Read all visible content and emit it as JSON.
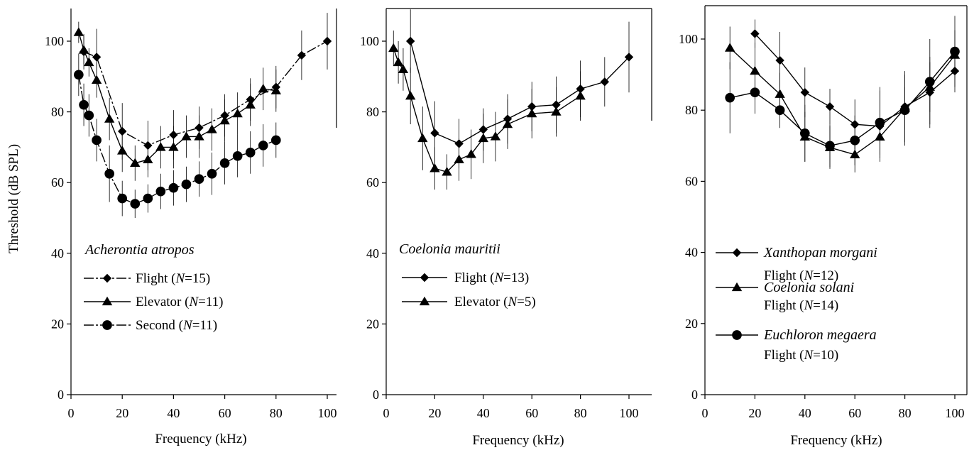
{
  "chart_data": [
    {
      "type": "line",
      "panel": "A",
      "xlabel": "Frequency (kHz)",
      "ylabel": "Threshold (dB SPL)",
      "xlim": [
        0,
        105
      ],
      "ylim": [
        0,
        110
      ],
      "xticks": [
        "0",
        "20",
        "40",
        "60",
        "80",
        "100"
      ],
      "yticks": [
        "0",
        "20",
        "40",
        "60",
        "80",
        "100"
      ],
      "species_label": "Acherontia atropos",
      "series": [
        {
          "name": "Flight (N=15)",
          "label_main": "Flight (",
          "label_n": "N",
          "label_rest": "=15)",
          "marker": "diamond",
          "dash": "dashdot",
          "x": [
            5,
            10,
            20,
            30,
            40,
            50,
            60,
            70,
            80,
            90,
            100
          ],
          "y": [
            97,
            95.5,
            74.5,
            70.5,
            73.5,
            75.5,
            79,
            83.5,
            87,
            96,
            100
          ],
          "err": [
            5,
            8,
            8,
            7,
            7,
            6,
            6,
            6,
            6,
            7,
            8
          ]
        },
        {
          "name": "Elevator (N=11)",
          "label_main": "Elevator (",
          "label_n": "N",
          "label_rest": "=11)",
          "marker": "triangle",
          "dash": "solid",
          "x": [
            3,
            5,
            7,
            10,
            15,
            20,
            25,
            30,
            35,
            40,
            45,
            50,
            55,
            60,
            65,
            70,
            75,
            80
          ],
          "y": [
            102.5,
            97.5,
            94,
            89,
            78,
            69,
            65.5,
            66.5,
            70,
            70,
            73,
            73,
            75,
            77.5,
            79.5,
            82,
            86.5,
            86
          ],
          "err": [
            3,
            4,
            4,
            5,
            6,
            6,
            5,
            5,
            6,
            6,
            6,
            6,
            6,
            6,
            6,
            6,
            6,
            6
          ]
        },
        {
          "name": "Second (N=11)",
          "label_main": "Second (",
          "label_n": "N",
          "label_rest": "=11)",
          "marker": "circle",
          "dash": "dashdot",
          "x": [
            3,
            5,
            7,
            10,
            15,
            20,
            25,
            30,
            35,
            40,
            45,
            50,
            55,
            60,
            65,
            70,
            75,
            80
          ],
          "y": [
            90.5,
            82,
            79,
            72,
            62.5,
            55.5,
            54,
            55.5,
            57.5,
            58.5,
            59.5,
            61,
            62.5,
            65.5,
            67.5,
            68.5,
            70.5,
            72
          ],
          "err": [
            6,
            6,
            6,
            6,
            8,
            5,
            4,
            4,
            5,
            5,
            5,
            5,
            6,
            6,
            6,
            6,
            6,
            5
          ]
        }
      ]
    },
    {
      "type": "line",
      "panel": "B",
      "xlabel": "Frequency (kHz)",
      "ylabel": "",
      "xlim": [
        0,
        105
      ],
      "ylim": [
        0,
        110
      ],
      "xticks": [
        "0",
        "20",
        "40",
        "60",
        "80",
        "100"
      ],
      "yticks": [
        "0",
        "20",
        "40",
        "60",
        "80",
        "100"
      ],
      "species_label": "Coelonia mauritii",
      "series": [
        {
          "name": "Flight (N=13)",
          "label_main": "Flight (",
          "label_n": "N",
          "label_rest": "=13)",
          "marker": "diamond",
          "dash": "solid",
          "x": [
            10,
            20,
            30,
            40,
            50,
            60,
            70,
            80,
            90,
            100
          ],
          "y": [
            100,
            74,
            71,
            75,
            78,
            81.5,
            82,
            86.5,
            88.5,
            95.5
          ],
          "err": [
            9,
            9,
            7,
            6,
            7,
            7,
            8,
            8,
            7,
            10
          ]
        },
        {
          "name": "Elevator (N=5)",
          "label_main": "Elevator (",
          "label_n": "N",
          "label_rest": "=5)",
          "marker": "triangle",
          "dash": "solid",
          "x": [
            3,
            5,
            7,
            10,
            15,
            20,
            25,
            30,
            35,
            40,
            45,
            50,
            60,
            70,
            80
          ],
          "y": [
            98,
            94,
            92,
            84.5,
            72.5,
            64,
            63,
            66.5,
            68,
            72.5,
            73,
            76.5,
            79.5,
            80,
            84.5
          ],
          "err": [
            5,
            6,
            6,
            8,
            9,
            6,
            5,
            6,
            7,
            7,
            7,
            7,
            7,
            7,
            7
          ]
        }
      ]
    },
    {
      "type": "line",
      "panel": "C",
      "xlabel": "Frequency (kHz)",
      "ylabel": "",
      "xlim": [
        0,
        100
      ],
      "ylim": [
        0,
        110
      ],
      "xticks": [
        "0",
        "20",
        "40",
        "60",
        "80",
        "100"
      ],
      "yticks": [
        "0",
        "20",
        "40",
        "60",
        "80",
        "100"
      ],
      "series": [
        {
          "name": "Xanthopan morgani Flight (N=12)",
          "species": "Xanthopan morgani",
          "label_main": "Flight (",
          "label_n": "N",
          "label_rest": "=12)",
          "marker": "diamond",
          "dash": "solid",
          "x": [
            20,
            30,
            40,
            50,
            60,
            70,
            80,
            90,
            100
          ],
          "y": [
            101.5,
            94,
            85,
            81,
            76,
            75.5,
            81,
            85,
            91
          ],
          "err": [
            4,
            8,
            7,
            5,
            7,
            10,
            10,
            10,
            6
          ]
        },
        {
          "name": "Coelonia solani Flight (N=14)",
          "species": "Coelonia solani",
          "label_main": "Flight (",
          "label_n": "N",
          "label_rest": "=14)",
          "marker": "triangle",
          "dash": "solid",
          "x": [
            10,
            20,
            30,
            40,
            50,
            60,
            70,
            80,
            90,
            100
          ],
          "y": [
            97.5,
            91,
            84.5,
            72.5,
            69.5,
            67.5,
            72.5,
            80.5,
            86.5,
            95.5
          ],
          "err": [
            6,
            8,
            6,
            7,
            6,
            5,
            5,
            6,
            7,
            7
          ]
        },
        {
          "name": "Euchloron megaera Flight (N=10)",
          "species": "Euchloron megaera",
          "label_main": "Flight (",
          "label_n": "N",
          "label_rest": "=10)",
          "marker": "circle",
          "dash": "solid",
          "x": [
            10,
            20,
            30,
            40,
            50,
            60,
            70,
            80,
            90,
            100
          ],
          "y": [
            83.5,
            85,
            80,
            73.5,
            70,
            71.5,
            76.5,
            80,
            88,
            96.5
          ],
          "err": [
            10,
            6,
            5,
            8,
            6,
            7,
            10,
            10,
            12,
            10
          ]
        }
      ]
    }
  ]
}
